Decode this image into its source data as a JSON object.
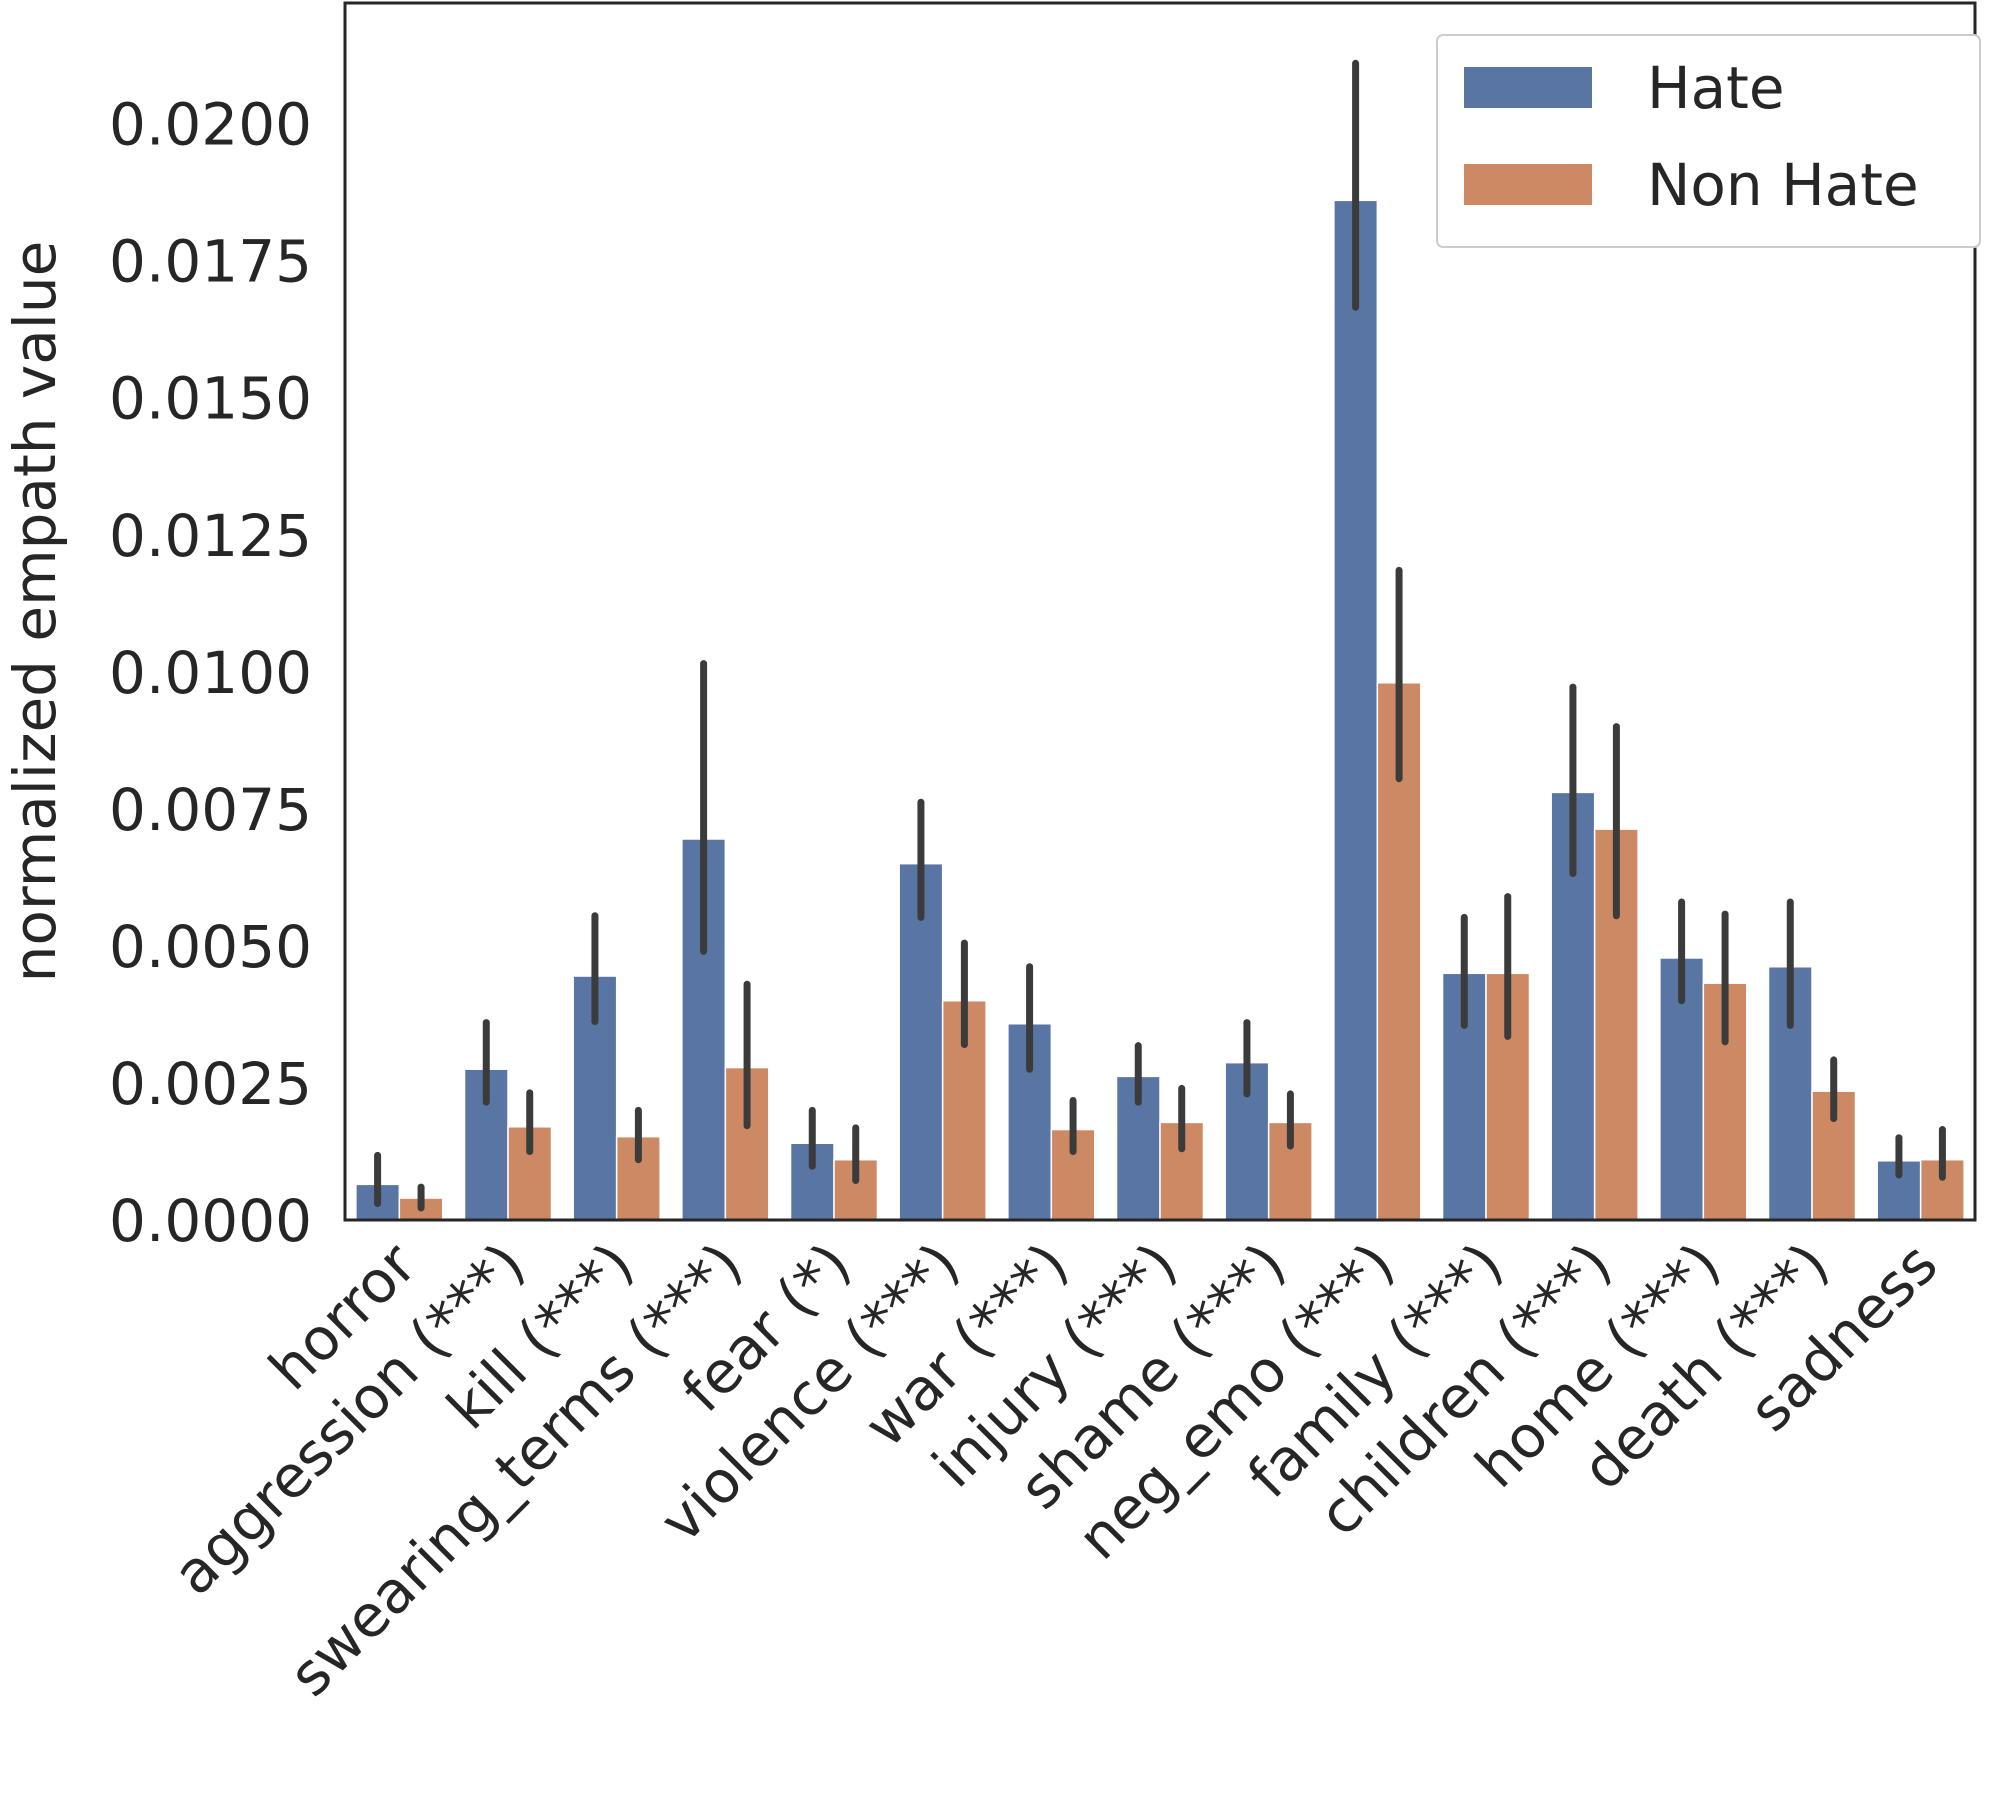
{
  "chart_data": {
    "type": "bar",
    "title": "",
    "xlabel": "",
    "ylabel": "normalized empath value",
    "ylim": [
      0,
      0.0222
    ],
    "yticks": [
      "0.0000",
      "0.0025",
      "0.0050",
      "0.0075",
      "0.0100",
      "0.0125",
      "0.0150",
      "0.0175",
      "0.0200"
    ],
    "grid": false,
    "legend_position": "top-right",
    "categories": [
      "horror",
      "aggression (***)",
      "kill (***)",
      "swearing_terms (***)",
      "fear (*)",
      "violence (***)",
      "war (***)",
      "injury (***)",
      "shame (***)",
      "neg_emo (***)",
      "family (***)",
      "children (***)",
      "home (***)",
      "death (***)",
      "sadness"
    ],
    "series": [
      {
        "name": "Hate",
        "color": "#5975a4",
        "values": [
          0.00065,
          0.00275,
          0.00445,
          0.00695,
          0.0014,
          0.0065,
          0.00358,
          0.00262,
          0.00287,
          0.0186,
          0.0045,
          0.0078,
          0.00478,
          0.00462,
          0.00108
        ],
        "err_low": [
          0.0003,
          0.00215,
          0.00362,
          0.0049,
          0.00098,
          0.00552,
          0.00275,
          0.00215,
          0.0023,
          0.01665,
          0.00355,
          0.00632,
          0.004,
          0.00355,
          0.00082
        ],
        "err_high": [
          0.00118,
          0.0036,
          0.00555,
          0.01015,
          0.002,
          0.00762,
          0.00462,
          0.00318,
          0.0036,
          0.0211,
          0.00552,
          0.00972,
          0.0058,
          0.0058,
          0.0015
        ]
      },
      {
        "name": "Non Hate",
        "color": "#cc8963",
        "values": [
          0.0004,
          0.0017,
          0.00152,
          0.00278,
          0.0011,
          0.004,
          0.00165,
          0.00178,
          0.00178,
          0.0098,
          0.0045,
          0.00713,
          0.00432,
          0.00235,
          0.0011
        ],
        "err_low": [
          0.00022,
          0.00125,
          0.0011,
          0.00172,
          0.00072,
          0.0032,
          0.00125,
          0.0013,
          0.00135,
          0.00805,
          0.00335,
          0.00555,
          0.00325,
          0.00185,
          0.00078
        ],
        "err_high": [
          0.0006,
          0.00232,
          0.002,
          0.0043,
          0.00168,
          0.00505,
          0.00218,
          0.0024,
          0.0023,
          0.01185,
          0.0059,
          0.009,
          0.00558,
          0.00292,
          0.00165
        ]
      }
    ]
  }
}
